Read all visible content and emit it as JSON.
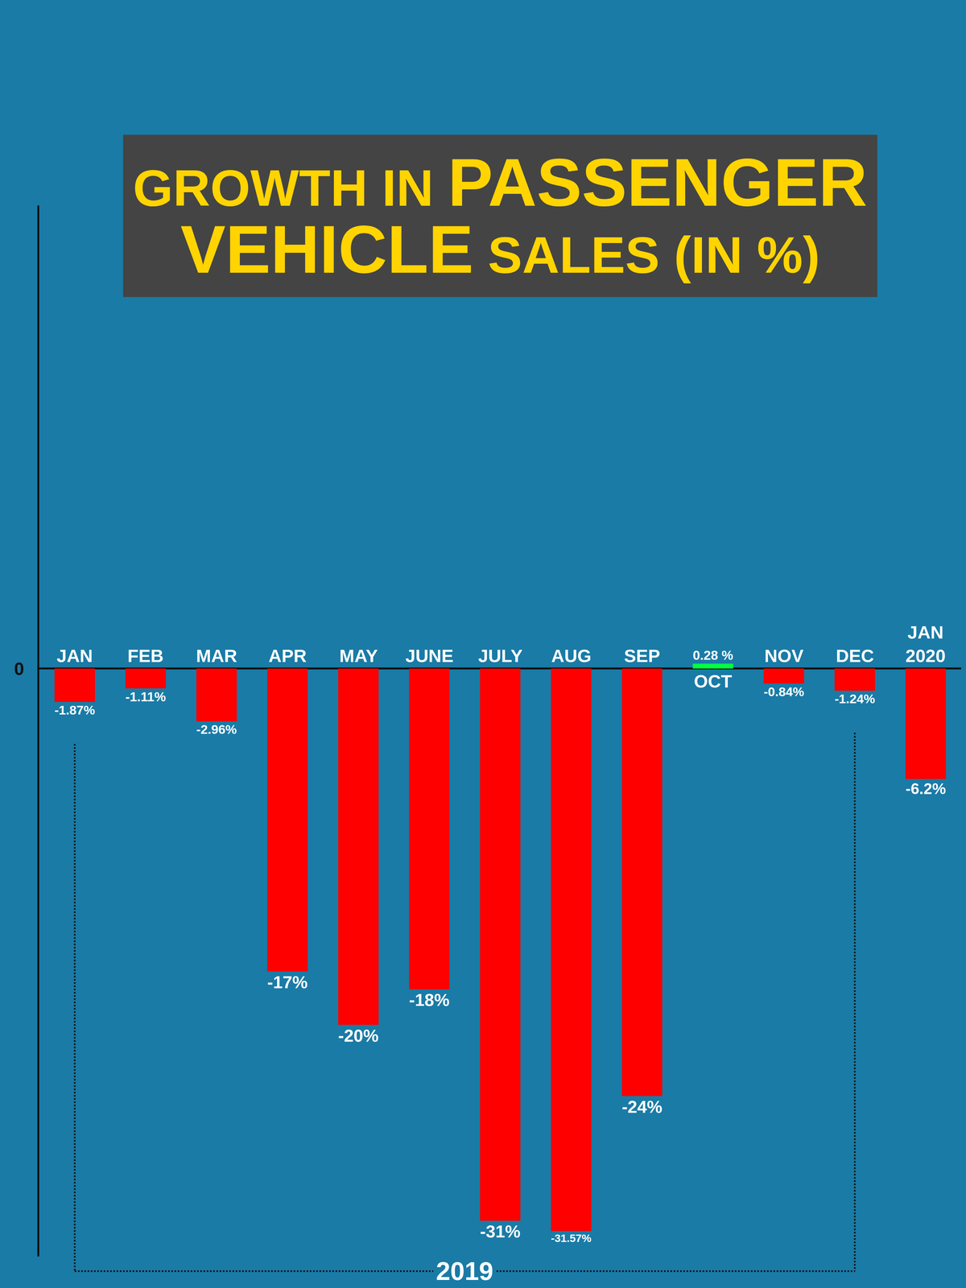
{
  "chart_data": {
    "type": "bar",
    "title": "GROWTH IN PASSENGER VEHICLE SALES (IN %)",
    "categories": [
      "JAN",
      "FEB",
      "MAR",
      "APR",
      "MAY",
      "JUNE",
      "JULY",
      "AUG",
      "SEP",
      "OCT",
      "NOV",
      "DEC",
      "JAN 2020"
    ],
    "values": [
      -1.87,
      -1.11,
      -2.96,
      -17,
      -20,
      -18,
      -31,
      -31.57,
      -24,
      0.28,
      -0.84,
      -1.24,
      -6.2
    ],
    "value_labels": [
      "-1.87%",
      "-1.11%",
      "-2.96%",
      "-17%",
      "-20%",
      "-18%",
      "-31%",
      "-31.57%",
      "-24%",
      "0.28 %",
      "-0.84%",
      "-1.24%",
      "-6.2%"
    ],
    "colors": [
      "#ff0000",
      "#ff0000",
      "#ff0000",
      "#ff0000",
      "#ff0000",
      "#ff0000",
      "#ff0000",
      "#ff0000",
      "#ff0000",
      "#00ff44",
      "#ff0000",
      "#ff0000",
      "#ff0000"
    ],
    "ylim": [
      -33,
      26
    ],
    "yticks": [
      0
    ],
    "grid": false,
    "data_labels": true,
    "annotations": [
      {
        "text": "2019",
        "from": "JAN",
        "to": "DEC"
      }
    ]
  }
}
